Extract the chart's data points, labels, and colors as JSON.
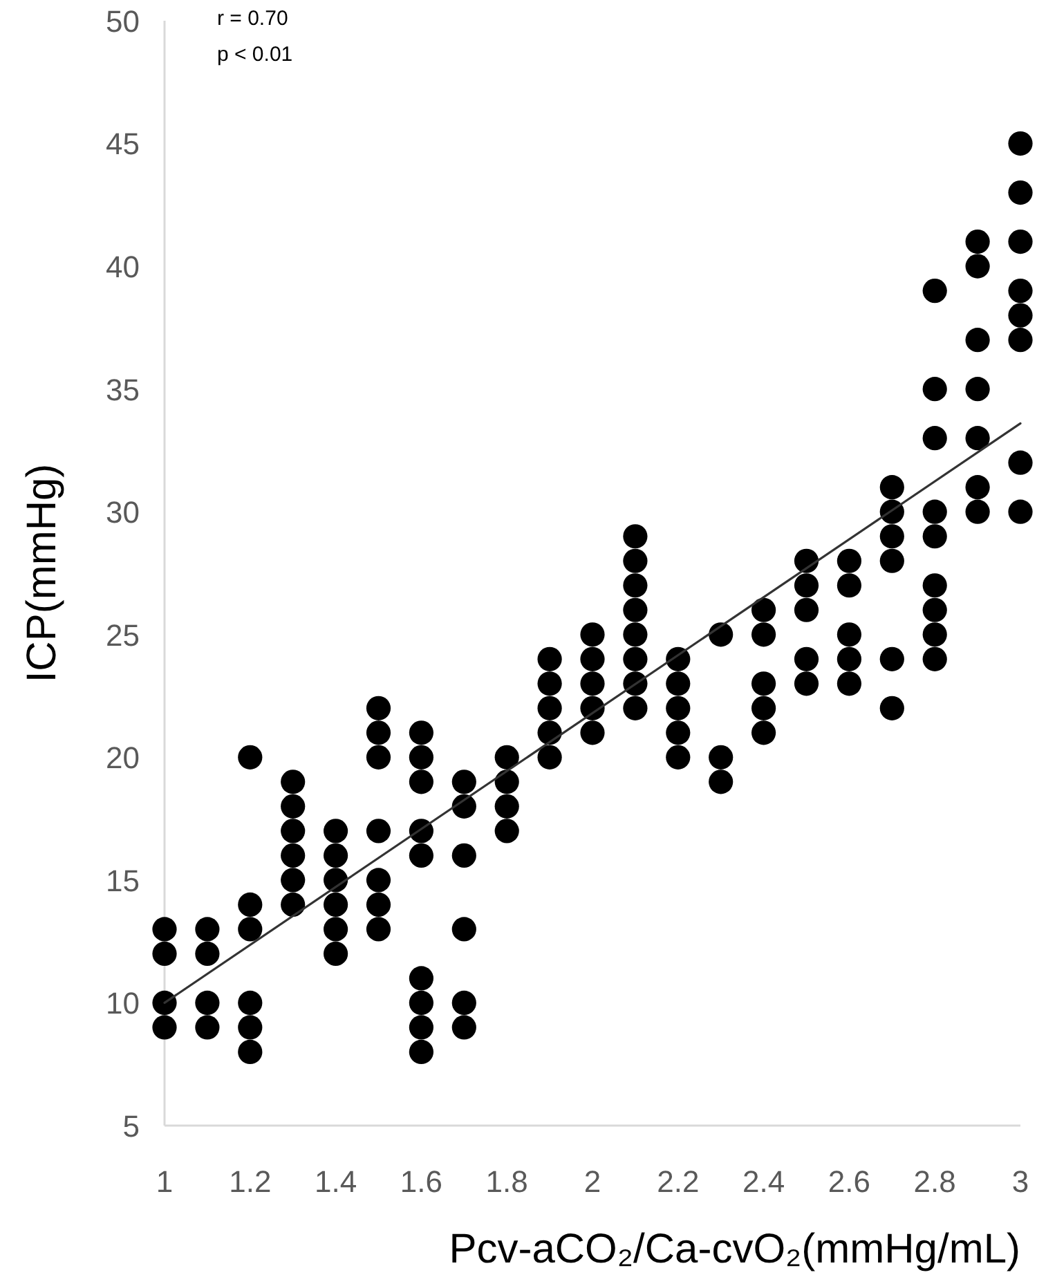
{
  "chart_data": {
    "type": "scatter",
    "xlabel": "Pcv-aCO₂/Ca-cvO₂(mmHg/mL)",
    "ylabel": "ICP(mmHg)",
    "annotations": [
      "r = 0.70",
      "p < 0.01"
    ],
    "xlim": [
      1,
      3
    ],
    "xticks": [
      1,
      1.2,
      1.4,
      1.6,
      1.8,
      2,
      2.2,
      2.4,
      2.6,
      2.8,
      3
    ],
    "ylim": [
      5,
      50
    ],
    "yticks": [
      5,
      10,
      15,
      20,
      25,
      30,
      35,
      40,
      45,
      50
    ],
    "series": [
      {
        "marker": "circle",
        "color": "#000000",
        "x": [
          1,
          1,
          1,
          1,
          1.1,
          1.1,
          1.1,
          1.1,
          1.2,
          1.2,
          1.2,
          1.2,
          1.2,
          1.2,
          1.3,
          1.3,
          1.3,
          1.3,
          1.3,
          1.3,
          1.4,
          1.4,
          1.4,
          1.4,
          1.4,
          1.4,
          1.5,
          1.5,
          1.5,
          1.5,
          1.5,
          1.5,
          1.5,
          1.6,
          1.6,
          1.6,
          1.6,
          1.6,
          1.6,
          1.6,
          1.6,
          1.6,
          1.7,
          1.7,
          1.7,
          1.7,
          1.7,
          1.7,
          1.8,
          1.8,
          1.8,
          1.8,
          1.9,
          1.9,
          1.9,
          1.9,
          1.9,
          2,
          2,
          2,
          2,
          2,
          2.1,
          2.1,
          2.1,
          2.1,
          2.1,
          2.1,
          2.1,
          2.1,
          2.2,
          2.2,
          2.2,
          2.2,
          2.2,
          2.3,
          2.3,
          2.3,
          2.4,
          2.4,
          2.4,
          2.4,
          2.4,
          2.5,
          2.5,
          2.5,
          2.5,
          2.5,
          2.6,
          2.6,
          2.6,
          2.6,
          2.6,
          2.7,
          2.7,
          2.7,
          2.7,
          2.7,
          2.7,
          2.8,
          2.8,
          2.8,
          2.8,
          2.8,
          2.8,
          2.8,
          2.8,
          2.8,
          2.9,
          2.9,
          2.9,
          2.9,
          2.9,
          2.9,
          2.9,
          3,
          3,
          3,
          3,
          3,
          3,
          3,
          3
        ],
        "values": [
          13,
          12,
          10,
          9,
          13,
          12,
          10,
          9,
          20,
          14,
          13,
          10,
          9,
          8,
          19,
          18,
          17,
          16,
          15,
          14,
          17,
          16,
          15,
          14,
          13,
          12,
          22,
          21,
          20,
          17,
          15,
          14,
          13,
          21,
          20,
          19,
          17,
          16,
          11,
          10,
          9,
          8,
          19,
          18,
          16,
          13,
          10,
          9,
          20,
          19,
          18,
          17,
          24,
          23,
          22,
          21,
          20,
          25,
          24,
          23,
          22,
          21,
          29,
          28,
          27,
          26,
          25,
          24,
          23,
          22,
          24,
          23,
          22,
          21,
          20,
          25,
          20,
          19,
          26,
          25,
          23,
          22,
          21,
          28,
          27,
          26,
          24,
          23,
          28,
          27,
          25,
          24,
          23,
          31,
          30,
          29,
          28,
          24,
          22,
          39,
          35,
          33,
          30,
          29,
          27,
          26,
          25,
          24,
          41,
          40,
          37,
          35,
          33,
          31,
          30,
          45,
          43,
          41,
          39,
          38,
          37,
          32,
          30
        ]
      },
      {
        "type": "line",
        "color": "#333333",
        "line_style": "solid",
        "x": [
          1,
          3
        ],
        "values": [
          10,
          33.6
        ]
      }
    ]
  }
}
